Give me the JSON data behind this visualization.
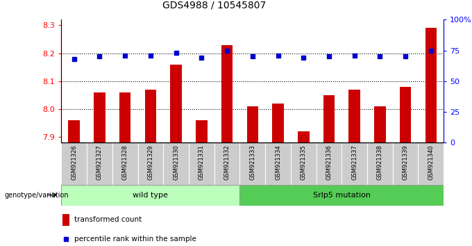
{
  "title": "GDS4988 / 10545807",
  "samples": [
    "GSM921326",
    "GSM921327",
    "GSM921328",
    "GSM921329",
    "GSM921330",
    "GSM921331",
    "GSM921332",
    "GSM921333",
    "GSM921334",
    "GSM921335",
    "GSM921336",
    "GSM921337",
    "GSM921338",
    "GSM921339",
    "GSM921340"
  ],
  "transformed_counts": [
    7.96,
    8.06,
    8.06,
    8.07,
    8.16,
    7.96,
    8.23,
    8.01,
    8.02,
    7.92,
    8.05,
    8.07,
    8.01,
    8.08,
    8.29
  ],
  "percentile_ranks": [
    68,
    70,
    71,
    71,
    73,
    69,
    75,
    70,
    71,
    69,
    70,
    71,
    70,
    70,
    75
  ],
  "bar_color": "#cc0000",
  "dot_color": "#0000cc",
  "ylim_left": [
    7.88,
    8.32
  ],
  "ylim_right": [
    0,
    100
  ],
  "yticks_left": [
    7.9,
    8.0,
    8.1,
    8.2,
    8.3
  ],
  "yticks_right": [
    0,
    25,
    50,
    75,
    100
  ],
  "grid_values": [
    8.0,
    8.1,
    8.2
  ],
  "group1_label": "wild type",
  "group2_label": "Srlp5 mutation",
  "group1_count": 7,
  "genotype_label": "genotype/variation",
  "legend1_label": "transformed count",
  "legend2_label": "percentile rank within the sample",
  "group1_color": "#bbffbb",
  "group2_color": "#55cc55",
  "bar_bottom": 7.88,
  "tick_area_color": "#cccccc",
  "background_color": "#ffffff",
  "title_fontsize": 10,
  "axis_fontsize": 8,
  "label_fontsize": 7,
  "bar_width": 0.45
}
